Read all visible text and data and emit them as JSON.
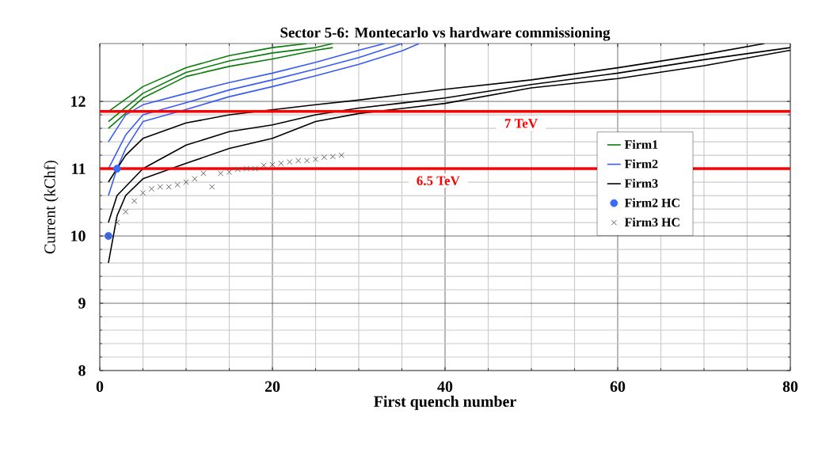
{
  "chart_data": {
    "type": "line",
    "title": "Sector 5-6: Montecarlo vs hardware commissioning",
    "xlabel": "First quench number",
    "ylabel": "Current (kChf)",
    "xlim": [
      0,
      80
    ],
    "ylim": [
      8,
      12.86
    ],
    "xticks": [
      0,
      20,
      40,
      60,
      80
    ],
    "yticks": [
      8,
      9,
      10,
      11,
      12
    ],
    "grid": true,
    "legend": "right",
    "ref_lines": [
      {
        "axis": "y",
        "value": 11.85,
        "label": "7 TeV",
        "color": "#ff0000"
      },
      {
        "axis": "y",
        "value": 11.0,
        "label": "6.5 TeV",
        "color": "#ff0000"
      }
    ],
    "series": [
      {
        "name": "Firm1",
        "color": "#0a7d0a",
        "x": [
          1,
          5,
          10,
          15,
          20,
          24
        ],
        "values": [
          11.85,
          12.22,
          12.5,
          12.68,
          12.8,
          12.86
        ]
      },
      {
        "type": "line",
        "color": "#0a7d0a",
        "x": [
          1,
          5,
          10,
          15,
          20,
          25,
          27
        ],
        "values": [
          11.7,
          12.12,
          12.43,
          12.6,
          12.72,
          12.8,
          12.86
        ]
      },
      {
        "type": "line",
        "color": "#0a7d0a",
        "x": [
          1,
          5,
          10,
          15,
          20,
          25,
          27
        ],
        "values": [
          11.6,
          12.05,
          12.37,
          12.52,
          12.63,
          12.76,
          12.8
        ]
      },
      {
        "name": "Firm2",
        "type": "line",
        "color": "#3a5cf0",
        "x": [
          1,
          3,
          5,
          10,
          15,
          20,
          25,
          30,
          33
        ],
        "values": [
          11.4,
          11.8,
          11.95,
          12.12,
          12.28,
          12.42,
          12.58,
          12.76,
          12.86
        ]
      },
      {
        "type": "line",
        "color": "#3a5cf0",
        "x": [
          1,
          3,
          5,
          10,
          15,
          20,
          25,
          30,
          35
        ],
        "values": [
          11.0,
          11.5,
          11.8,
          11.98,
          12.17,
          12.32,
          12.48,
          12.65,
          12.86
        ]
      },
      {
        "type": "line",
        "color": "#3a5cf0",
        "x": [
          1,
          2,
          3,
          5,
          10,
          15,
          20,
          25,
          30,
          35,
          37
        ],
        "values": [
          10.6,
          11.0,
          11.3,
          11.7,
          11.88,
          12.07,
          12.22,
          12.38,
          12.55,
          12.75,
          12.86
        ]
      },
      {
        "name": "Firm3",
        "type": "line",
        "color": "#000000",
        "x": [
          1,
          2,
          3,
          5,
          10,
          15,
          20,
          25,
          30,
          40,
          50,
          60,
          70,
          77
        ],
        "values": [
          10.8,
          null,
          11.2,
          11.45,
          11.68,
          11.8,
          null,
          11.95,
          12.02,
          12.18,
          12.32,
          12.5,
          12.7,
          12.86
        ]
      },
      {
        "type": "line",
        "color": "#000000",
        "x": [
          1,
          2,
          5,
          10,
          15,
          20,
          25,
          30,
          40,
          50,
          60,
          70,
          80
        ],
        "values": [
          10.2,
          10.6,
          11.0,
          11.35,
          11.55,
          11.65,
          11.8,
          11.9,
          12.05,
          12.25,
          12.42,
          12.62,
          12.8
        ]
      },
      {
        "type": "line",
        "color": "#000000",
        "x": [
          1,
          2,
          3,
          5,
          10,
          15,
          20,
          25,
          30,
          40,
          50,
          60,
          70,
          80
        ],
        "values": [
          9.6,
          10.3,
          10.6,
          10.85,
          11.08,
          11.3,
          11.45,
          11.7,
          11.82,
          11.97,
          12.2,
          12.34,
          12.53,
          12.76
        ]
      },
      {
        "name": "Firm2 HC",
        "type": "scatter",
        "marker": "circle",
        "color": "#3b6cf5",
        "x": [
          1,
          2
        ],
        "values": [
          10.0,
          11.0
        ]
      },
      {
        "name": "Firm3 HC",
        "type": "scatter",
        "marker": "cross",
        "color": "#555555",
        "x": [
          1,
          2,
          3,
          4,
          5,
          6,
          7,
          8,
          9,
          10,
          11,
          12,
          13,
          14,
          15,
          16,
          17,
          18,
          19,
          20,
          21,
          22,
          23,
          24,
          25,
          26,
          27,
          28
        ],
        "values": [
          10.0,
          10.2,
          10.36,
          10.52,
          10.64,
          10.7,
          10.73,
          10.73,
          10.76,
          10.8,
          10.85,
          10.93,
          10.73,
          10.93,
          10.95,
          10.99,
          11.0,
          11.0,
          11.05,
          11.06,
          11.08,
          11.1,
          11.12,
          11.12,
          11.14,
          11.17,
          11.18,
          11.2
        ]
      }
    ]
  }
}
